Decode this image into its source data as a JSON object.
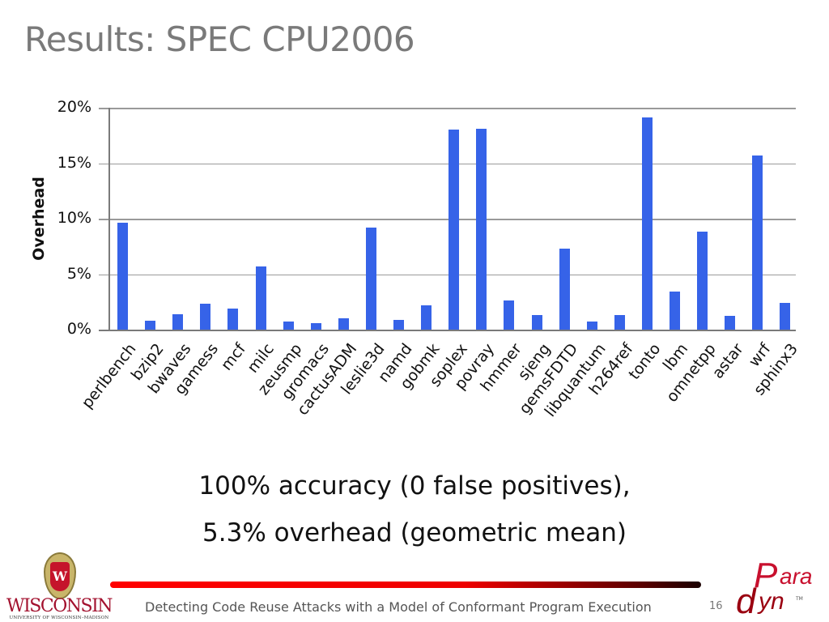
{
  "slide": {
    "title": "Results: SPEC CPU2006",
    "caption_line1": "100% accuracy (0 false positives),",
    "caption_line2": "5.3% overhead (geometric mean)",
    "footer_text": "Detecting Code Reuse Attacks with a Model of Conformant Program Execution",
    "page_number": "16",
    "logos": {
      "left": {
        "word": "WISCONSIN",
        "subtitle": "UNIVERSITY OF WISCONSIN–MADISON",
        "crest_letter": "W"
      },
      "right": {
        "big_p": "P",
        "ara": "ara",
        "d": "d",
        "yn": "yn",
        "tm": "TM"
      }
    },
    "colors": {
      "bar": "#3663e8",
      "title": "#7a7a7a",
      "accent_red": "#ff0000",
      "wisconsin_red": "#a3122f"
    }
  },
  "chart_data": {
    "type": "bar",
    "title": "",
    "xlabel": "",
    "ylabel": "Overhead",
    "ylim": [
      0,
      20
    ],
    "yticks": [
      "0%",
      "5%",
      "10%",
      "15%",
      "20%"
    ],
    "grid": true,
    "legend": null,
    "categories": [
      "perlbench",
      "bzip2",
      "bwaves",
      "gamess",
      "mcf",
      "milc",
      "zeusmp",
      "gromacs",
      "cactusADM",
      "leslie3d",
      "namd",
      "gobmk",
      "soplex",
      "povray",
      "hmmer",
      "sjeng",
      "gemsFDTD",
      "libquantum",
      "h264ref",
      "tonto",
      "lbm",
      "omnetpp",
      "astar",
      "wrf",
      "sphinx3"
    ],
    "values": [
      9.6,
      0.8,
      1.4,
      2.3,
      1.9,
      5.7,
      0.7,
      0.6,
      1.0,
      9.2,
      0.85,
      2.2,
      18.0,
      18.1,
      2.6,
      1.3,
      7.3,
      0.7,
      1.3,
      19.1,
      3.4,
      8.8,
      1.25,
      15.7,
      2.4
    ],
    "units": "%"
  }
}
